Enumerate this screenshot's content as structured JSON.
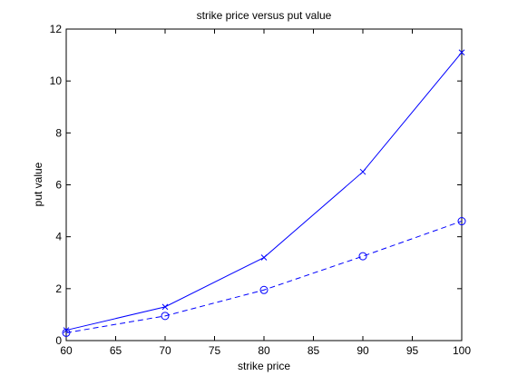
{
  "chart_data": {
    "type": "line",
    "title": "strike price versus put value",
    "xlabel": "strike price",
    "ylabel": "put value",
    "xlim": [
      60,
      100
    ],
    "ylim": [
      0,
      12
    ],
    "xticks": [
      60,
      65,
      70,
      75,
      80,
      85,
      90,
      95,
      100
    ],
    "yticks": [
      0,
      2,
      4,
      6,
      8,
      10,
      12
    ],
    "grid": false,
    "legend": null,
    "series": [
      {
        "x": [
          60,
          70,
          80,
          90,
          100
        ],
        "values": [
          0.4,
          1.3,
          3.2,
          6.5,
          11.1
        ],
        "color": "#0000ff",
        "line_style": "solid",
        "marker": "x"
      },
      {
        "x": [
          60,
          70,
          80,
          90,
          100
        ],
        "values": [
          0.3,
          0.95,
          1.95,
          3.25,
          4.6
        ],
        "color": "#0000ff",
        "line_style": "dashed",
        "marker": "o"
      }
    ]
  }
}
